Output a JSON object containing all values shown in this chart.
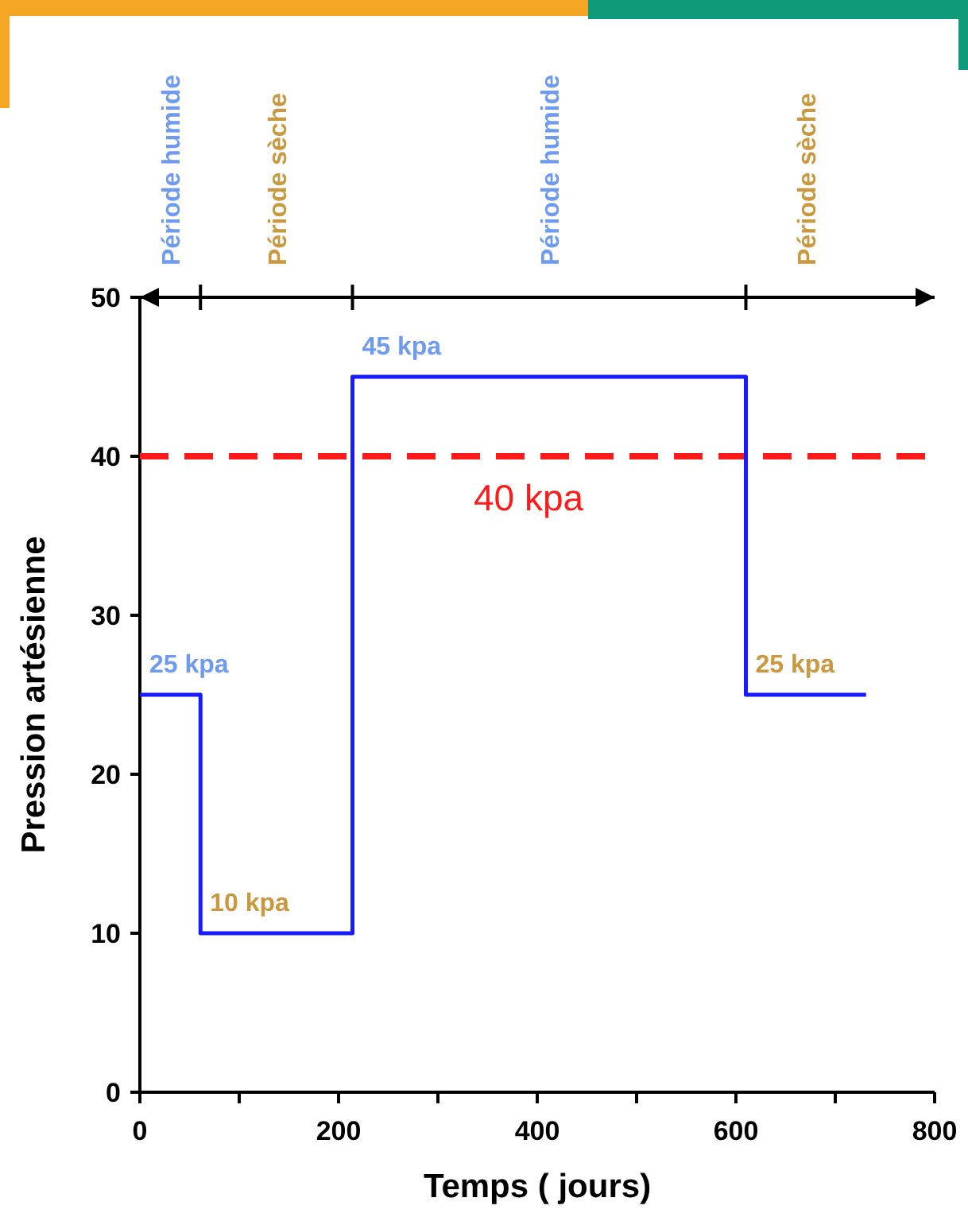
{
  "chart_data": {
    "type": "step",
    "xlabel": "Temps ( jours)",
    "ylabel": "Pression artésienne",
    "xlim": [
      0,
      800
    ],
    "ylim": [
      0,
      50
    ],
    "xticks": [
      0,
      {
        "value": 100,
        "label": null
      },
      200,
      {
        "value": 300,
        "label": null
      },
      400,
      {
        "value": 500,
        "label": null
      },
      600,
      {
        "value": 700,
        "label": null
      },
      800
    ],
    "yticks": [
      0,
      10,
      20,
      30,
      40,
      50
    ],
    "series": [
      {
        "color": "#1a1aff",
        "x": [
          0,
          61,
          214,
          610,
          731
        ],
        "values": [
          25,
          10,
          45,
          25,
          25
        ],
        "value_labels": [
          "25 kpa",
          "10 kpa",
          "45 kpa",
          "25 kpa",
          null
        ]
      }
    ],
    "ref_lines": [
      {
        "axis": "y",
        "value": 40,
        "label": "40 kpa",
        "color": "#ff1a1a",
        "line_style": "dashed"
      }
    ],
    "annotations": [
      "Période humide",
      "Période sèche",
      "Période humide",
      "Période sèche"
    ],
    "grid": false
  }
}
